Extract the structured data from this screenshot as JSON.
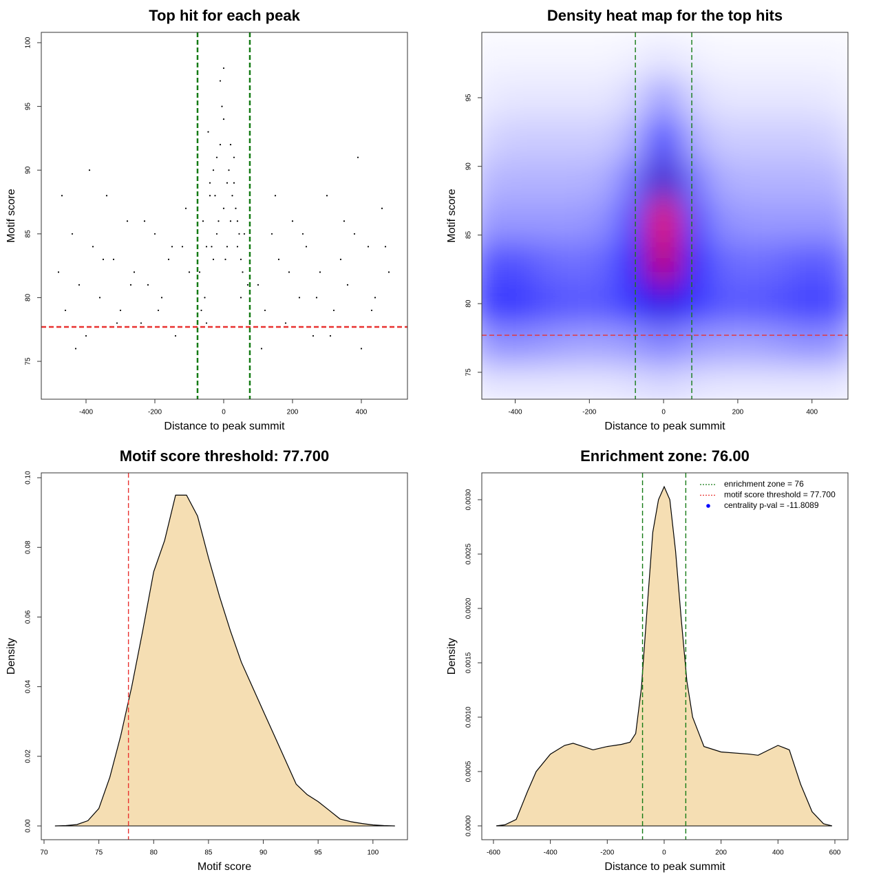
{
  "chart_data": [
    {
      "type": "scatter",
      "title": "Top hit for each peak",
      "xlabel": "Distance to peak summit",
      "ylabel": "Motif score",
      "color": "#000000",
      "x": [
        -480,
        -460,
        -440,
        -420,
        -400,
        -380,
        -360,
        -340,
        -320,
        -300,
        -280,
        -260,
        -240,
        -220,
        -200,
        -180,
        -160,
        -140,
        -120,
        -100,
        100,
        120,
        140,
        160,
        180,
        200,
        220,
        240,
        260,
        280,
        300,
        320,
        340,
        360,
        380,
        400,
        420,
        440,
        460,
        480,
        -470,
        -430,
        -390,
        -350,
        -310,
        -270,
        -230,
        -190,
        -150,
        -110,
        110,
        150,
        190,
        230,
        270,
        310,
        350,
        390,
        430,
        470,
        -70,
        -60,
        -50,
        -40,
        -30,
        -20,
        -10,
        0,
        10,
        20,
        30,
        40,
        50,
        60,
        70,
        -65,
        -45,
        -25,
        -5,
        15,
        35,
        55,
        -55,
        -35,
        -15,
        5,
        25,
        45,
        -40,
        -20,
        0,
        20,
        40,
        -10,
        10,
        -30,
        30,
        0,
        -50,
        50
      ],
      "values": [
        82,
        79,
        85,
        81,
        77,
        84,
        80,
        88,
        83,
        79,
        86,
        82,
        78,
        81,
        85,
        80,
        83,
        77,
        84,
        82,
        81,
        79,
        85,
        83,
        78,
        86,
        80,
        84,
        77,
        82,
        88,
        79,
        83,
        81,
        85,
        76,
        84,
        80,
        87,
        82,
        88,
        76,
        90,
        83,
        78,
        81,
        86,
        79,
        84,
        87,
        76,
        88,
        82,
        85,
        80,
        77,
        86,
        91,
        79,
        84,
        82,
        86,
        84,
        88,
        90,
        85,
        92,
        87,
        89,
        86,
        91,
        84,
        83,
        85,
        81,
        79,
        93,
        88,
        95,
        90,
        87,
        82,
        80,
        84,
        86,
        83,
        88,
        85,
        89,
        91,
        94,
        92,
        86,
        97,
        84,
        83,
        89,
        98,
        78,
        80
      ],
      "xlim": [
        -530,
        534
      ],
      "ylim": [
        72.03,
        100.81
      ],
      "xticks": [
        -400,
        -200,
        0,
        200,
        400
      ],
      "yticks": [
        75,
        80,
        85,
        90,
        95,
        100
      ],
      "hlines": [
        {
          "value": 77.7,
          "color": "#e8312f"
        }
      ],
      "vlines": [
        {
          "value": -76,
          "color": "#137a13"
        },
        {
          "value": 76,
          "color": "#137a13"
        }
      ]
    },
    {
      "type": "heatmap",
      "title": "Density heat map for the top hits",
      "xlabel": "Distance to peak summit",
      "ylabel": "Motif score",
      "x": [
        -480,
        -400,
        -320,
        -240,
        -160,
        -80,
        0,
        80,
        160,
        240,
        320,
        400,
        480
      ],
      "y": [
        74,
        77,
        80,
        83,
        86,
        89,
        92,
        95,
        98
      ],
      "z": [
        [
          0.05,
          0.05,
          0.05,
          0.05,
          0.05,
          0.06,
          0.08,
          0.06,
          0.05,
          0.05,
          0.05,
          0.05,
          0.05
        ],
        [
          0.2,
          0.22,
          0.2,
          0.18,
          0.18,
          0.2,
          0.25,
          0.2,
          0.18,
          0.18,
          0.2,
          0.22,
          0.2
        ],
        [
          0.38,
          0.4,
          0.35,
          0.33,
          0.33,
          0.4,
          0.55,
          0.4,
          0.33,
          0.33,
          0.35,
          0.38,
          0.35
        ],
        [
          0.33,
          0.35,
          0.3,
          0.28,
          0.3,
          0.45,
          0.9,
          0.45,
          0.3,
          0.28,
          0.3,
          0.33,
          0.3
        ],
        [
          0.2,
          0.2,
          0.2,
          0.2,
          0.22,
          0.38,
          0.97,
          0.38,
          0.22,
          0.2,
          0.2,
          0.2,
          0.2
        ],
        [
          0.14,
          0.15,
          0.15,
          0.15,
          0.16,
          0.28,
          0.62,
          0.28,
          0.16,
          0.15,
          0.15,
          0.15,
          0.14
        ],
        [
          0.08,
          0.1,
          0.1,
          0.1,
          0.1,
          0.16,
          0.42,
          0.16,
          0.1,
          0.1,
          0.1,
          0.1,
          0.08
        ],
        [
          0.04,
          0.05,
          0.05,
          0.05,
          0.05,
          0.08,
          0.2,
          0.08,
          0.05,
          0.05,
          0.05,
          0.05,
          0.04
        ],
        [
          0.02,
          0.02,
          0.02,
          0.02,
          0.02,
          0.03,
          0.05,
          0.03,
          0.02,
          0.02,
          0.02,
          0.02,
          0.02
        ]
      ],
      "colorscale": [
        "#ffffff",
        "#0000ff",
        "#ff0000"
      ],
      "xlim": [
        -490,
        497
      ],
      "ylim": [
        73.04,
        99.76
      ],
      "xticks": [
        -400,
        -200,
        0,
        200,
        400
      ],
      "yticks": [
        75,
        80,
        85,
        90,
        95
      ],
      "hlines": [
        {
          "value": 77.7,
          "color": "#e8312f"
        }
      ],
      "vlines": [
        {
          "value": -76,
          "color": "#137a13"
        },
        {
          "value": 76,
          "color": "#137a13"
        }
      ]
    },
    {
      "type": "area",
      "title": "Motif score threshold: 77.700",
      "xlabel": "Motif score",
      "ylabel": "Density",
      "color": "#f5deb3",
      "x": [
        71,
        72,
        73,
        74,
        75,
        76,
        77,
        78,
        79,
        80,
        81,
        82,
        83,
        84,
        85,
        86,
        87,
        88,
        89,
        90,
        91,
        92,
        93,
        94,
        95,
        96,
        97,
        98,
        99,
        100,
        101,
        102
      ],
      "values": [
        0,
        0.0001,
        0.0004,
        0.0015,
        0.005,
        0.014,
        0.026,
        0.04,
        0.056,
        0.073,
        0.082,
        0.095,
        0.095,
        0.089,
        0.077,
        0.066,
        0.056,
        0.047,
        0.04,
        0.033,
        0.026,
        0.019,
        0.012,
        0.009,
        0.007,
        0.0045,
        0.002,
        0.0012,
        0.0007,
        0.0003,
        0.0001,
        0
      ],
      "xlim": [
        69.75,
        103.15
      ],
      "ylim": [
        -0.00395,
        0.1014
      ],
      "xticks": [
        70,
        75,
        80,
        85,
        90,
        95,
        100
      ],
      "yticks": [
        {
          "value": 0,
          "label": "0.00"
        },
        0.02,
        0.04,
        0.06,
        0.08,
        {
          "value": 0.1,
          "label": "0.10"
        }
      ],
      "hlines": [],
      "vlines": [
        {
          "value": 77.7,
          "color": "#e8312f"
        }
      ]
    },
    {
      "type": "area",
      "title": "Enrichment zone: 76.00",
      "xlabel": "Distance to peak summit",
      "ylabel": "Density",
      "color": "#f5deb3",
      "x": [
        -590,
        -560,
        -520,
        -480,
        -450,
        -400,
        -350,
        -320,
        -250,
        -200,
        -150,
        -120,
        -100,
        -80,
        -60,
        -40,
        -20,
        0,
        20,
        40,
        60,
        80,
        100,
        140,
        200,
        300,
        330,
        400,
        440,
        480,
        520,
        560,
        590
      ],
      "values": [
        0,
        1e-05,
        6e-05,
        0.00032,
        0.0005,
        0.00066,
        0.00074,
        0.00076,
        0.0007,
        0.00073,
        0.00075,
        0.00077,
        0.00085,
        0.00127,
        0.002,
        0.0027,
        0.003,
        0.00312,
        0.003,
        0.00253,
        0.0019,
        0.00133,
        0.001,
        0.00073,
        0.00068,
        0.00066,
        0.00065,
        0.00074,
        0.0007,
        0.00038,
        0.00013,
        2e-05,
        0
      ],
      "xlim": [
        -641,
        646
      ],
      "ylim": [
        -0.000127,
        0.003247
      ],
      "xticks": [
        -600,
        -400,
        -200,
        0,
        200,
        400,
        600
      ],
      "yticks": [
        {
          "value": 0,
          "label": "0.0000"
        },
        0.0005,
        {
          "value": 0.001,
          "label": "0.0010"
        },
        0.0015,
        {
          "value": 0.002,
          "label": "0.0020"
        },
        0.0025,
        {
          "value": 0.003,
          "label": "0.0030"
        }
      ],
      "hlines": [],
      "vlines": [
        {
          "value": -76,
          "color": "#137a13"
        },
        {
          "value": 76,
          "color": "#137a13"
        }
      ],
      "legend_position": "top-right",
      "legend": [
        {
          "label": "enrichment zone = 76",
          "color": "#137a13",
          "style": "dotted"
        },
        {
          "label": "motif score threshold = 77.700",
          "color": "#e8312f",
          "style": "dotted"
        },
        {
          "label": "centrality p-val = -11.8089",
          "color": "#0000ff",
          "style": "point"
        }
      ]
    }
  ]
}
